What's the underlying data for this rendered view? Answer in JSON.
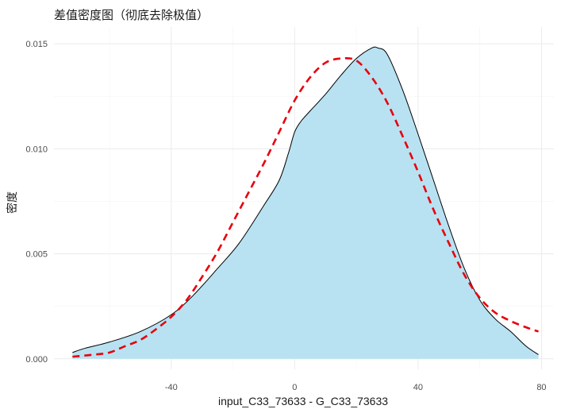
{
  "chart_data": {
    "type": "area",
    "title": "差值密度图（彻底去除极值）",
    "xlabel": "input_C33_73633 - G_C33_73633",
    "ylabel": "密度",
    "xlim": [
      -78,
      84
    ],
    "ylim": [
      -0.0005,
      0.0158
    ],
    "x_ticks": [
      -40,
      0,
      40,
      80
    ],
    "x_tick_labels": [
      "-40",
      "0",
      "40",
      "80"
    ],
    "y_ticks": [
      0.0,
      0.005,
      0.01,
      0.015
    ],
    "y_tick_labels": [
      "0.000",
      "0.005",
      "0.010",
      "0.015"
    ],
    "grid": true,
    "series": [
      {
        "role": "density-area",
        "fill": "#b8e2f2",
        "stroke": "#000000",
        "x": [
          -72,
          -68,
          -60,
          -50,
          -40,
          -33,
          -25,
          -18,
          -10,
          -5,
          -2,
          0,
          2,
          5,
          10,
          15,
          20,
          25,
          27,
          30,
          35,
          40,
          45,
          50,
          55,
          60,
          65,
          70,
          75,
          79
        ],
        "y": [
          0.0003,
          0.0005,
          0.0008,
          0.0013,
          0.0021,
          0.003,
          0.0043,
          0.0055,
          0.0073,
          0.0085,
          0.0098,
          0.0108,
          0.0113,
          0.0118,
          0.0126,
          0.0135,
          0.0143,
          0.0148,
          0.0148,
          0.0145,
          0.0128,
          0.0107,
          0.0085,
          0.0063,
          0.0043,
          0.0028,
          0.0019,
          0.0013,
          0.0006,
          0.0002
        ]
      },
      {
        "role": "normal-curve",
        "stroke": "#e8000b",
        "dash": "dashed",
        "x": [
          -72,
          -65,
          -60,
          -55,
          -50,
          -45,
          -40,
          -35,
          -30,
          -25,
          -20,
          -15,
          -10,
          -5,
          0,
          5,
          10,
          15,
          20,
          25,
          30,
          35,
          40,
          45,
          50,
          55,
          60,
          65,
          70,
          75,
          79
        ],
        "y": [
          0.0001,
          0.0002,
          0.0003,
          0.0006,
          0.0009,
          0.0014,
          0.002,
          0.0028,
          0.0039,
          0.0051,
          0.0065,
          0.0079,
          0.0093,
          0.0108,
          0.0123,
          0.0134,
          0.0141,
          0.0143,
          0.0142,
          0.0134,
          0.0122,
          0.0106,
          0.0089,
          0.0071,
          0.0055,
          0.004,
          0.0029,
          0.0022,
          0.0018,
          0.0015,
          0.0013
        ]
      }
    ]
  }
}
